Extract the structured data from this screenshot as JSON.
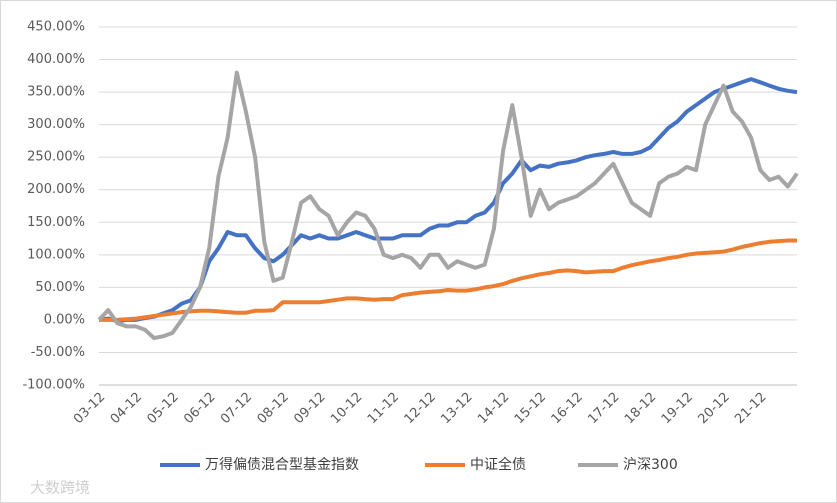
{
  "chart_data": {
    "type": "line",
    "categories": [
      "03-12",
      null,
      null,
      null,
      "04-12",
      null,
      null,
      null,
      "05-12",
      null,
      null,
      null,
      "06-12",
      null,
      null,
      null,
      "07-12",
      null,
      null,
      null,
      "08-12",
      null,
      null,
      null,
      "09-12",
      null,
      null,
      null,
      "10-12",
      null,
      null,
      null,
      "11-12",
      null,
      null,
      null,
      "12-12",
      null,
      null,
      null,
      "13-12",
      null,
      null,
      null,
      "14-12",
      null,
      null,
      null,
      "15-12",
      null,
      null,
      null,
      "16-12",
      null,
      null,
      null,
      "17-12",
      null,
      null,
      null,
      "18-12",
      null,
      null,
      null,
      "19-12",
      null,
      null,
      null,
      "20-12",
      null,
      null,
      null,
      "21-12",
      null,
      null,
      null,
      null
    ],
    "series": [
      {
        "name": "万得偏债混合型基金指数",
        "color": "#4472c4",
        "values": [
          0,
          2,
          -2,
          0,
          0,
          3,
          5,
          10,
          15,
          25,
          30,
          50,
          90,
          110,
          135,
          130,
          130,
          110,
          95,
          90,
          100,
          115,
          130,
          125,
          130,
          125,
          125,
          130,
          135,
          130,
          125,
          125,
          125,
          130,
          130,
          130,
          140,
          145,
          145,
          150,
          150,
          160,
          165,
          180,
          210,
          225,
          245,
          230,
          237,
          235,
          240,
          242,
          245,
          250,
          253,
          255,
          258,
          255,
          255,
          258,
          265,
          280,
          295,
          305,
          320,
          330,
          340,
          350,
          355,
          360,
          365,
          370,
          365,
          360,
          355,
          352,
          350
        ]
      },
      {
        "name": "中证全债",
        "color": "#ed7d31",
        "values": [
          0,
          0,
          0,
          1,
          2,
          4,
          6,
          8,
          10,
          12,
          13,
          14,
          14,
          13,
          12,
          11,
          11,
          14,
          14,
          15,
          27,
          27,
          27,
          27,
          27,
          29,
          31,
          33,
          33,
          32,
          31,
          32,
          32,
          38,
          40,
          42,
          43,
          44,
          46,
          45,
          45,
          47,
          50,
          52,
          55,
          60,
          64,
          67,
          70,
          72,
          75,
          76,
          75,
          73,
          74,
          75,
          75,
          80,
          84,
          87,
          90,
          92,
          95,
          97,
          100,
          102,
          103,
          104,
          105,
          108,
          112,
          115,
          118,
          120,
          121,
          122,
          122
        ]
      },
      {
        "name": "沪深300",
        "color": "#a5a5a5",
        "values": [
          0,
          15,
          -5,
          -10,
          -10,
          -15,
          -28,
          -25,
          -20,
          0,
          20,
          50,
          110,
          220,
          280,
          380,
          320,
          250,
          120,
          60,
          65,
          120,
          180,
          190,
          170,
          160,
          130,
          150,
          165,
          160,
          140,
          100,
          95,
          100,
          95,
          80,
          100,
          100,
          80,
          90,
          85,
          80,
          85,
          140,
          260,
          330,
          250,
          160,
          200,
          170,
          180,
          185,
          190,
          200,
          210,
          225,
          240,
          210,
          180,
          170,
          160,
          210,
          220,
          225,
          235,
          230,
          300,
          330,
          360,
          320,
          305,
          280,
          230,
          215,
          220,
          205,
          225
        ]
      }
    ],
    "ylim": [
      -100,
      450
    ],
    "yticks": [
      {
        "value": -100,
        "label": "-100.00%"
      },
      {
        "value": -50,
        "label": "-50.00%"
      },
      {
        "value": 0,
        "label": "0.00%"
      },
      {
        "value": 50,
        "label": "50.00%"
      },
      {
        "value": 100,
        "label": "100.00%"
      },
      {
        "value": 150,
        "label": "150.00%"
      },
      {
        "value": 200,
        "label": "200.00%"
      },
      {
        "value": 250,
        "label": "250.00%"
      },
      {
        "value": 300,
        "label": "300.00%"
      },
      {
        "value": 350,
        "label": "350.00%"
      },
      {
        "value": 400,
        "label": "400.00%"
      },
      {
        "value": 450,
        "label": "450.00%"
      }
    ],
    "grid": true,
    "legend": "bottom"
  },
  "watermark": "大数跨境"
}
